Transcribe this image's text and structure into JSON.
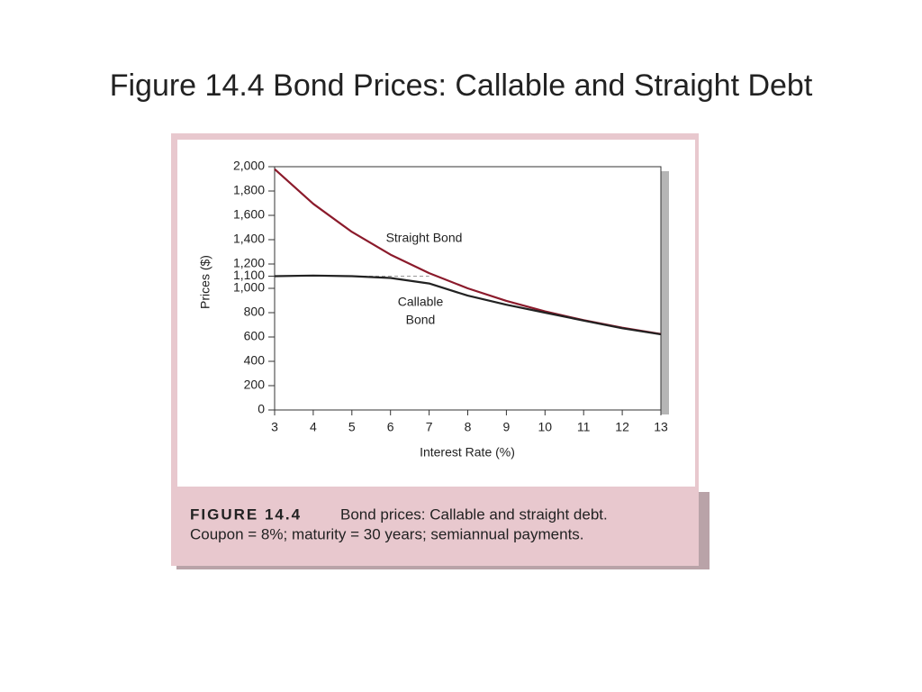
{
  "chart_data": {
    "type": "line",
    "title": "Figure 14.4 Bond Prices: Callable and Straight Debt",
    "x_label": "Interest Rate (%)",
    "y_label": "Prices ($)",
    "x": [
      3,
      4,
      5,
      6,
      7,
      8,
      9,
      10,
      11,
      12,
      13
    ],
    "series": [
      {
        "name": "Straight Bond",
        "color": "#8b1a2b",
        "values": [
          1980,
          1695,
          1464,
          1277,
          1125,
          1000,
          897,
          811,
          738,
          676,
          624
        ]
      },
      {
        "name": "Callable Bond",
        "color": "#222222",
        "values": [
          1100,
          1105,
          1100,
          1085,
          1040,
          940,
          865,
          800,
          735,
          672,
          622
        ]
      }
    ],
    "reference_line": {
      "y": 1100,
      "x": [
        3,
        7
      ]
    },
    "xlim": [
      3,
      13
    ],
    "xticks": [
      3,
      4,
      5,
      6,
      7,
      8,
      9,
      10,
      11,
      12,
      13
    ],
    "ylim": [
      0,
      2000
    ],
    "yticks": [
      0,
      200,
      400,
      600,
      800,
      {
        "value": 1000,
        "label": "1,000"
      },
      {
        "value": 1100,
        "label": "1,100"
      },
      {
        "value": 1200,
        "label": "1,200"
      },
      {
        "value": 1400,
        "label": "1,400"
      },
      {
        "value": 1600,
        "label": "1,600"
      },
      {
        "value": 1800,
        "label": "1,800"
      },
      {
        "value": 2000,
        "label": "2,000"
      }
    ],
    "annotations": [
      "Straight Bond",
      "Callable",
      "Bond"
    ],
    "caption_label": "FIGURE 14.4",
    "caption_line1": "Bond prices: Callable and straight debt.",
    "caption_line2": "Coupon = 8%; maturity = 30 years; semiannual payments."
  }
}
